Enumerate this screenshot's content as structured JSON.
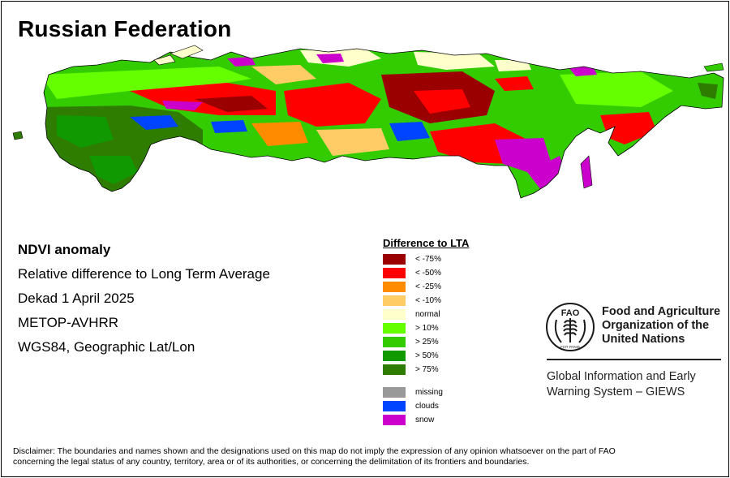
{
  "map_title": "Russian Federation",
  "info": {
    "title": "NDVI anomaly",
    "subtitle": "Relative difference to Long Term Average",
    "dekad": "Dekad 1 April 2025",
    "sensor": "METOP-AVHRR",
    "projection": "WGS84, Geographic Lat/Lon"
  },
  "legend": {
    "title": "Difference to LTA",
    "items": [
      {
        "label": "< -75%",
        "color": "#9b0000"
      },
      {
        "label": "< -50%",
        "color": "#ff0000"
      },
      {
        "label": "< -25%",
        "color": "#ff8c00"
      },
      {
        "label": "< -10%",
        "color": "#ffcc66"
      },
      {
        "label": "normal",
        "color": "#ffffcc"
      },
      {
        "label": "> 10%",
        "color": "#66ff00"
      },
      {
        "label": "> 25%",
        "color": "#33cc00"
      },
      {
        "label": "> 50%",
        "color": "#109900"
      },
      {
        "label": "> 75%",
        "color": "#2e7d00"
      }
    ],
    "extra": [
      {
        "label": "missing",
        "color": "#999999"
      },
      {
        "label": "clouds",
        "color": "#0044ff"
      },
      {
        "label": "snow",
        "color": "#cc00cc"
      }
    ]
  },
  "fao": {
    "logo_letters": "FAO",
    "logo_motto": "FIAT PANIS",
    "name_line1": "Food and Agriculture",
    "name_line2": "Organization of the",
    "name_line3": "United Nations",
    "giews_line1": "Global Information and Early",
    "giews_line2": "Warning System – GIEWS"
  },
  "disclaimer_line1": "Disclaimer: The boundaries and names shown and the designations used on this map do not imply the expression of any opinion whatsoever on the part of FAO",
  "disclaimer_line2": "concerning the legal status of any country, territory, area or of its authorities, or concerning the delimitation of its frontiers and boundaries."
}
